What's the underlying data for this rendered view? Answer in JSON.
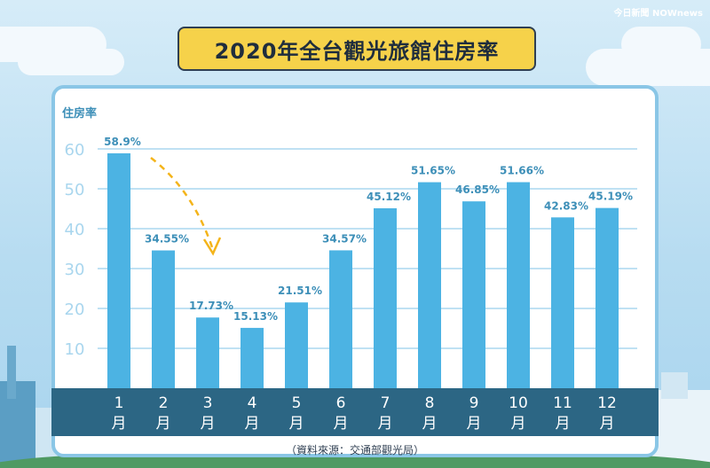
{
  "brand": "今日新聞 NOWnews",
  "chart_data": {
    "type": "bar",
    "title": "2020年全台觀光旅館住房率",
    "ylabel": "住房率",
    "categories": [
      "1月",
      "2月",
      "3月",
      "4月",
      "5月",
      "6月",
      "7月",
      "8月",
      "9月",
      "10月",
      "11月",
      "12月"
    ],
    "category_numbers": [
      "1",
      "2",
      "3",
      "4",
      "5",
      "6",
      "7",
      "8",
      "9",
      "10",
      "11",
      "12"
    ],
    "category_unit": "月",
    "values": [
      58.9,
      34.55,
      17.73,
      15.13,
      21.51,
      34.57,
      45.12,
      51.65,
      46.85,
      51.66,
      42.83,
      45.19
    ],
    "data_labels": [
      "58.9%",
      "34.55%",
      "17.73%",
      "15.13%",
      "21.51%",
      "34.57%",
      "45.12%",
      "51.65%",
      "46.85%",
      "51.66%",
      "42.83%",
      "45.19%"
    ],
    "yticks": [
      10,
      20,
      30,
      40,
      50,
      60
    ],
    "ylim": [
      0,
      60
    ],
    "grid": true,
    "source": "（資料來源：交通部觀光局）"
  },
  "colors": {
    "bar": "#4cb3e3",
    "grid": "#bfe1f3",
    "axis_band": "#2c6684",
    "label": "#3d8fb8",
    "tick": "#a9d6ee",
    "arrow": "#f4b41a"
  }
}
